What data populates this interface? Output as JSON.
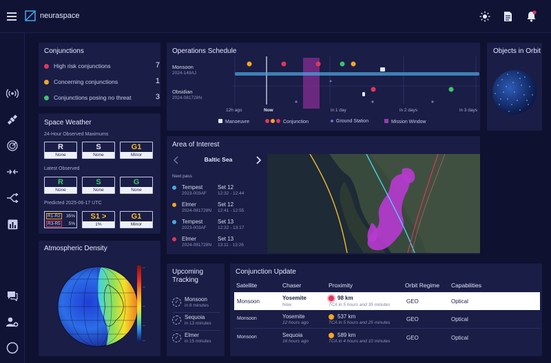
{
  "app": {
    "name": "neuraspace"
  },
  "header": {
    "icons": [
      "menu-icon",
      "sun-icon",
      "document-icon",
      "bell-icon"
    ]
  },
  "sidebar": {
    "icons": [
      "antenna-icon",
      "satellite-icon",
      "radar-icon",
      "arrows-merge-icon",
      "branch-icon",
      "bar-chart-icon",
      "chat-icon",
      "user-settings-icon",
      "circle-icon"
    ]
  },
  "conjunctions": {
    "title": "Conjunctions",
    "rows": [
      {
        "label": "High risk conjunctions",
        "count": "7",
        "color": "#e0365e"
      },
      {
        "label": "Concerning conjunctions",
        "count": "1",
        "color": "#f5a524"
      },
      {
        "label": "Conjunctions posing no threat",
        "count": "3",
        "color": "#3ec46d"
      }
    ]
  },
  "space_weather": {
    "title": "Space Weather",
    "observed_max_label": "24-Hour Observed Maximums",
    "observed_max": [
      {
        "top": "R",
        "bottom": "None"
      },
      {
        "top": "S",
        "bottom": "None"
      },
      {
        "top": "G1",
        "bottom": "Minor"
      }
    ],
    "latest_label": "Latest Observed",
    "latest": [
      {
        "top": "R",
        "bottom": "None"
      },
      {
        "top": "S",
        "bottom": "None"
      },
      {
        "top": "G",
        "bottom": "None"
      }
    ],
    "predicted_label": "Predicted 2025-06-17 UTC",
    "predicted_r": [
      {
        "label": "R1-R2",
        "pct": "35%"
      },
      {
        "label": "R3-R5",
        "pct": "5%"
      }
    ],
    "predicted_s": {
      "top": "S1 >",
      "bottom": "1%"
    },
    "predicted_g": {
      "top": "G1",
      "bottom": "Minor"
    }
  },
  "atmospheric_density": {
    "title": "Atmospheric Density"
  },
  "ops_schedule": {
    "title": "Operations Schedule",
    "satellites": [
      {
        "name": "Monsoon",
        "id": "2024-149AJ"
      },
      {
        "name": "Obsidian",
        "id": "2024-081728N"
      }
    ],
    "axis": [
      "12h ago",
      "Now",
      "in 1 day",
      "in 2 days",
      "in 3 days"
    ],
    "legend": [
      "Manoeuvre",
      "Conjunction",
      "Ground Station",
      "Mission Window"
    ]
  },
  "objects_in_orbit": {
    "title": "Objects in Orbit"
  },
  "area_of_interest": {
    "title": "Area of Interest",
    "region": "Baltic Sea",
    "next_pass_label": "Next pass",
    "passes": [
      {
        "name": "Tempest",
        "id": "2023-003AF",
        "date": "Set 12",
        "time": "12:32 - 12:44",
        "color": "#4aa8e8"
      },
      {
        "name": "Elmer",
        "id": "2024-081728N",
        "date": "Set 12",
        "time": "12:41 - 12:55",
        "color": "#f5a524"
      },
      {
        "name": "Tempest",
        "id": "2023-003AF",
        "date": "Set 13",
        "time": "12:32 - 13:17",
        "color": "#4aa8e8"
      },
      {
        "name": "Elmer",
        "id": "2024-081728N",
        "date": "Set 13",
        "time": "13:11 - 13:26",
        "color": "#e0365e"
      }
    ]
  },
  "upcoming_tracking": {
    "title_line1": "Upcoming",
    "title_line2": "Tracking",
    "items": [
      {
        "name": "Monsoon",
        "sub": "in 8 minutes"
      },
      {
        "name": "Sequoia",
        "sub": "in 13 minutes"
      },
      {
        "name": "Elmer",
        "sub": "in 15 minutes"
      }
    ]
  },
  "conjunction_update": {
    "title": "Conjunction Update",
    "headers": [
      "Satellite",
      "Chaser",
      "Proximity",
      "Orbit Regime",
      "Capabilities"
    ],
    "rows": [
      {
        "satellite": "Monsoon",
        "chaser": "Yosemite",
        "chaser_sub": "Now",
        "proximity": "98 km",
        "tca": "TCA in 5 hours and 35 minutes",
        "regime": "GEO",
        "capability": "Optical",
        "color": "#e0365e",
        "selected": true
      },
      {
        "satellite": "Monsoon",
        "chaser": "Yosemite",
        "chaser_sub": "12 hours ago",
        "proximity": "537 km",
        "tca": "TCA in 5 hours and 25 minutes",
        "regime": "GEO",
        "capability": "Optical",
        "color": "#f5a524",
        "selected": false
      },
      {
        "satellite": "Monsoon",
        "chaser": "Sequoia",
        "chaser_sub": "16 hours ago",
        "proximity": "589 km",
        "tca": "TCA in 4 hours and 10 minutes",
        "regime": "GEO",
        "capability": "Optical",
        "color": "#f5a524",
        "selected": false
      }
    ]
  }
}
